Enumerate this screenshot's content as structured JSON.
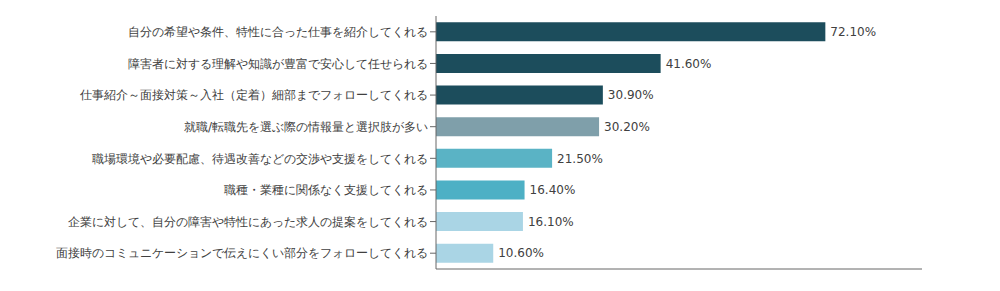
{
  "chart_data": {
    "type": "bar",
    "orientation": "horizontal",
    "categories": [
      "自分の希望や条件、特性に合った仕事を紹介してくれる",
      "障害者に対する理解や知識が豊富で安心して任せられる",
      "仕事紹介～面接対策～入社（定着）細部までフォローしてくれる",
      "就職/転職先を選ぶ際の情報量と選択肢が多い",
      "職場環境や必要配慮、待遇改善などの交渉や支援をしてくれる",
      "職種・業種に関係なく支援してくれる",
      "企業に対して、自分の障害や特性にあった求人の提案をしてくれる",
      "面接時のコミュニケーションで伝えにくい部分をフォローしてくれる"
    ],
    "values": [
      72.1,
      41.6,
      30.9,
      30.2,
      21.5,
      16.4,
      16.1,
      10.6
    ],
    "value_labels": [
      "72.10%",
      "41.60%",
      "30.90%",
      "30.20%",
      "21.50%",
      "16.40%",
      "16.10%",
      "10.60%"
    ],
    "colors": [
      "#1c4d5c",
      "#1c4d5c",
      "#1c4d5c",
      "#7f9faa",
      "#5ab3c5",
      "#4db0c5",
      "#aad5e5",
      "#aad5e5"
    ],
    "xlim": [
      0,
      90
    ],
    "data_labels": true,
    "tick_labels": "y",
    "grid": false
  }
}
